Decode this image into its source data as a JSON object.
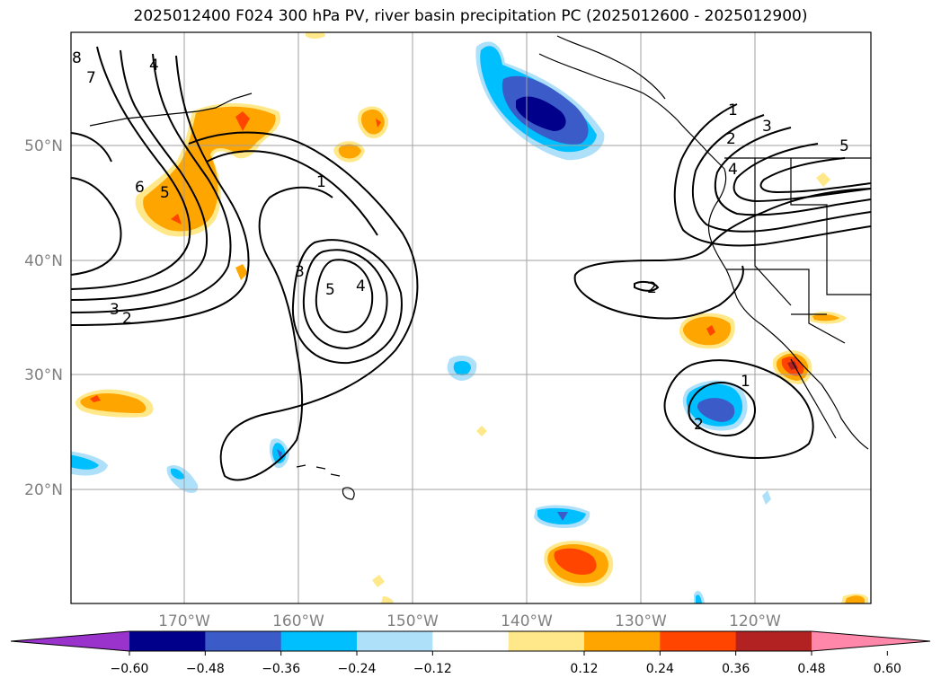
{
  "title": "2025012400 F024 300 hPa PV, river basin precipitation PC (2025012600 - 2025012900)",
  "lat_labels": [
    "50°N",
    "40°N",
    "30°N",
    "20°N"
  ],
  "lon_labels": [
    "170°W",
    "160°W",
    "150°W",
    "140°W",
    "130°W",
    "120°W"
  ],
  "pv_contour_labels": [
    "8",
    "7",
    "4",
    "6",
    "5",
    "3",
    "2",
    "1",
    "3",
    "5",
    "4",
    "1",
    "2",
    "3",
    "4",
    "5",
    "2",
    "1",
    "2"
  ],
  "colorbar": {
    "ticks": [
      "−0.60",
      "−0.48",
      "−0.36",
      "−0.24",
      "−0.12",
      "0.12",
      "0.24",
      "0.36",
      "0.48",
      "0.60"
    ],
    "colors": [
      "#9933cc",
      "#00008b",
      "#3a5bc8",
      "#00bfff",
      "#aee0fa",
      "#ffffff",
      "#ffe88a",
      "#ffa500",
      "#ff4500",
      "#b22222",
      "#ff88aa"
    ]
  },
  "colors": {
    "contour": "#000000",
    "grid": "#a0a0a0",
    "coast": "#000000",
    "axis_label": "#808080"
  }
}
